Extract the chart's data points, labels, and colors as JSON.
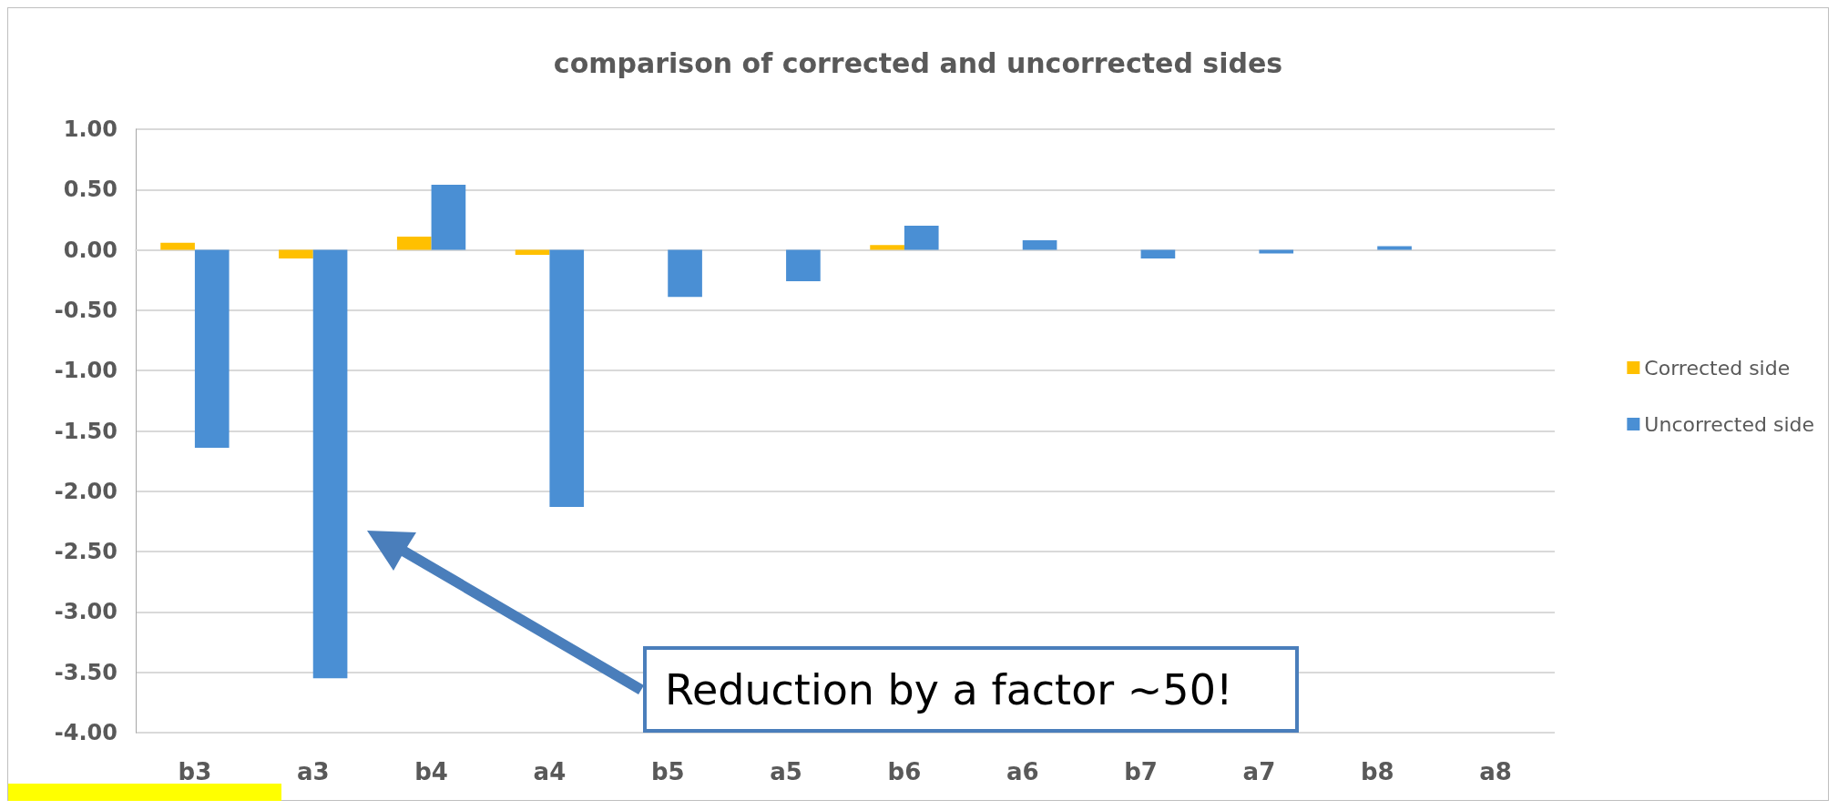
{
  "chart_data": {
    "type": "bar",
    "title": "comparison of corrected and uncorrected sides",
    "categories": [
      "b3",
      "a3",
      "b4",
      "a4",
      "b5",
      "a5",
      "b6",
      "a6",
      "b7",
      "a7",
      "b8",
      "a8"
    ],
    "series": [
      {
        "name": "Corrected side",
        "color": "#ffc000",
        "values": [
          0.06,
          -0.07,
          0.11,
          -0.04,
          0,
          0,
          0.04,
          0,
          0,
          0,
          0,
          0
        ]
      },
      {
        "name": "Uncorrected side",
        "color": "#4a8fd4",
        "values": [
          -1.64,
          -3.55,
          0.54,
          -2.13,
          -0.39,
          -0.26,
          0.2,
          0.08,
          -0.07,
          -0.03,
          0.03,
          0
        ]
      }
    ],
    "ylim": [
      -4,
      1
    ],
    "yticks": [
      {
        "value": -4,
        "label": "-4.00"
      },
      {
        "value": -3.5,
        "label": "-3.50"
      },
      {
        "value": -3,
        "label": "-3.00"
      },
      {
        "value": -2.5,
        "label": "-2.50"
      },
      {
        "value": -2,
        "label": "-2.00"
      },
      {
        "value": -1.5,
        "label": "-1.50"
      },
      {
        "value": -1,
        "label": "-1.00"
      },
      {
        "value": -0.5,
        "label": "-0.50"
      },
      {
        "value": 0,
        "label": "0.00"
      },
      {
        "value": 0.5,
        "label": "0.50"
      },
      {
        "value": 1,
        "label": "1.00"
      }
    ],
    "grid": "y",
    "legend": "right",
    "annotations": [
      "Reduction by a factor ~50!"
    ]
  }
}
